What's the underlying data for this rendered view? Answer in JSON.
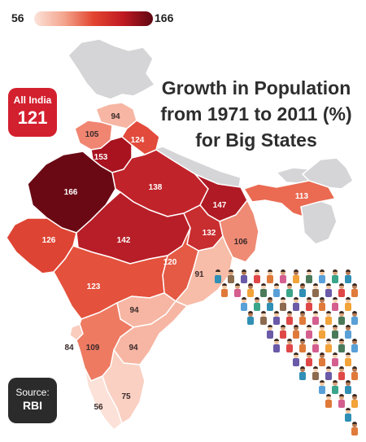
{
  "legend": {
    "min": "56",
    "max": "166"
  },
  "title": "Growth in Population\nfrom 1971 to 2011 (%)\nfor Big States",
  "all_india": {
    "label": "All India",
    "value": "121"
  },
  "source": {
    "label": "Source:",
    "value": "RBI"
  },
  "states": [
    {
      "key": "jk",
      "value": "94",
      "color": "#f6b6a3"
    },
    {
      "key": "himachal",
      "value": "105",
      "color": "#f08672"
    },
    {
      "key": "punjab",
      "value": "153",
      "color": "#a8131f"
    },
    {
      "key": "uttarakhand",
      "value": "124",
      "color": "#e24a3b"
    },
    {
      "key": "rajasthan",
      "value": "166",
      "color": "#6a0914"
    },
    {
      "key": "up",
      "value": "138",
      "color": "#c1232a"
    },
    {
      "key": "bihar",
      "value": "147",
      "color": "#b01a24"
    },
    {
      "key": "gujarat",
      "value": "126",
      "color": "#de4433"
    },
    {
      "key": "mp",
      "value": "142",
      "color": "#b81e27"
    },
    {
      "key": "jharkhand",
      "value": "132",
      "color": "#c82d2f"
    },
    {
      "key": "westbengal",
      "value": "106",
      "color": "#ef8b74"
    },
    {
      "key": "chhattisgarh",
      "value": "120",
      "color": "#e55a45"
    },
    {
      "key": "odisha",
      "value": "91",
      "color": "#f7bda9"
    },
    {
      "key": "maharashtra",
      "value": "123",
      "color": "#e4513c"
    },
    {
      "key": "telangana",
      "value": "94",
      "color": "#f6b6a3"
    },
    {
      "key": "goa",
      "value": "84",
      "color": "#f9ccbd"
    },
    {
      "key": "karnataka",
      "value": "109",
      "color": "#ee7a62"
    },
    {
      "key": "andhra",
      "value": "94",
      "color": "#f6b6a3"
    },
    {
      "key": "kerala",
      "value": "56",
      "color": "#fbe1d7"
    },
    {
      "key": "tamilnadu",
      "value": "75",
      "color": "#f9d0c2"
    },
    {
      "key": "northeast",
      "value": "113",
      "color": "#ea6a52"
    }
  ]
}
